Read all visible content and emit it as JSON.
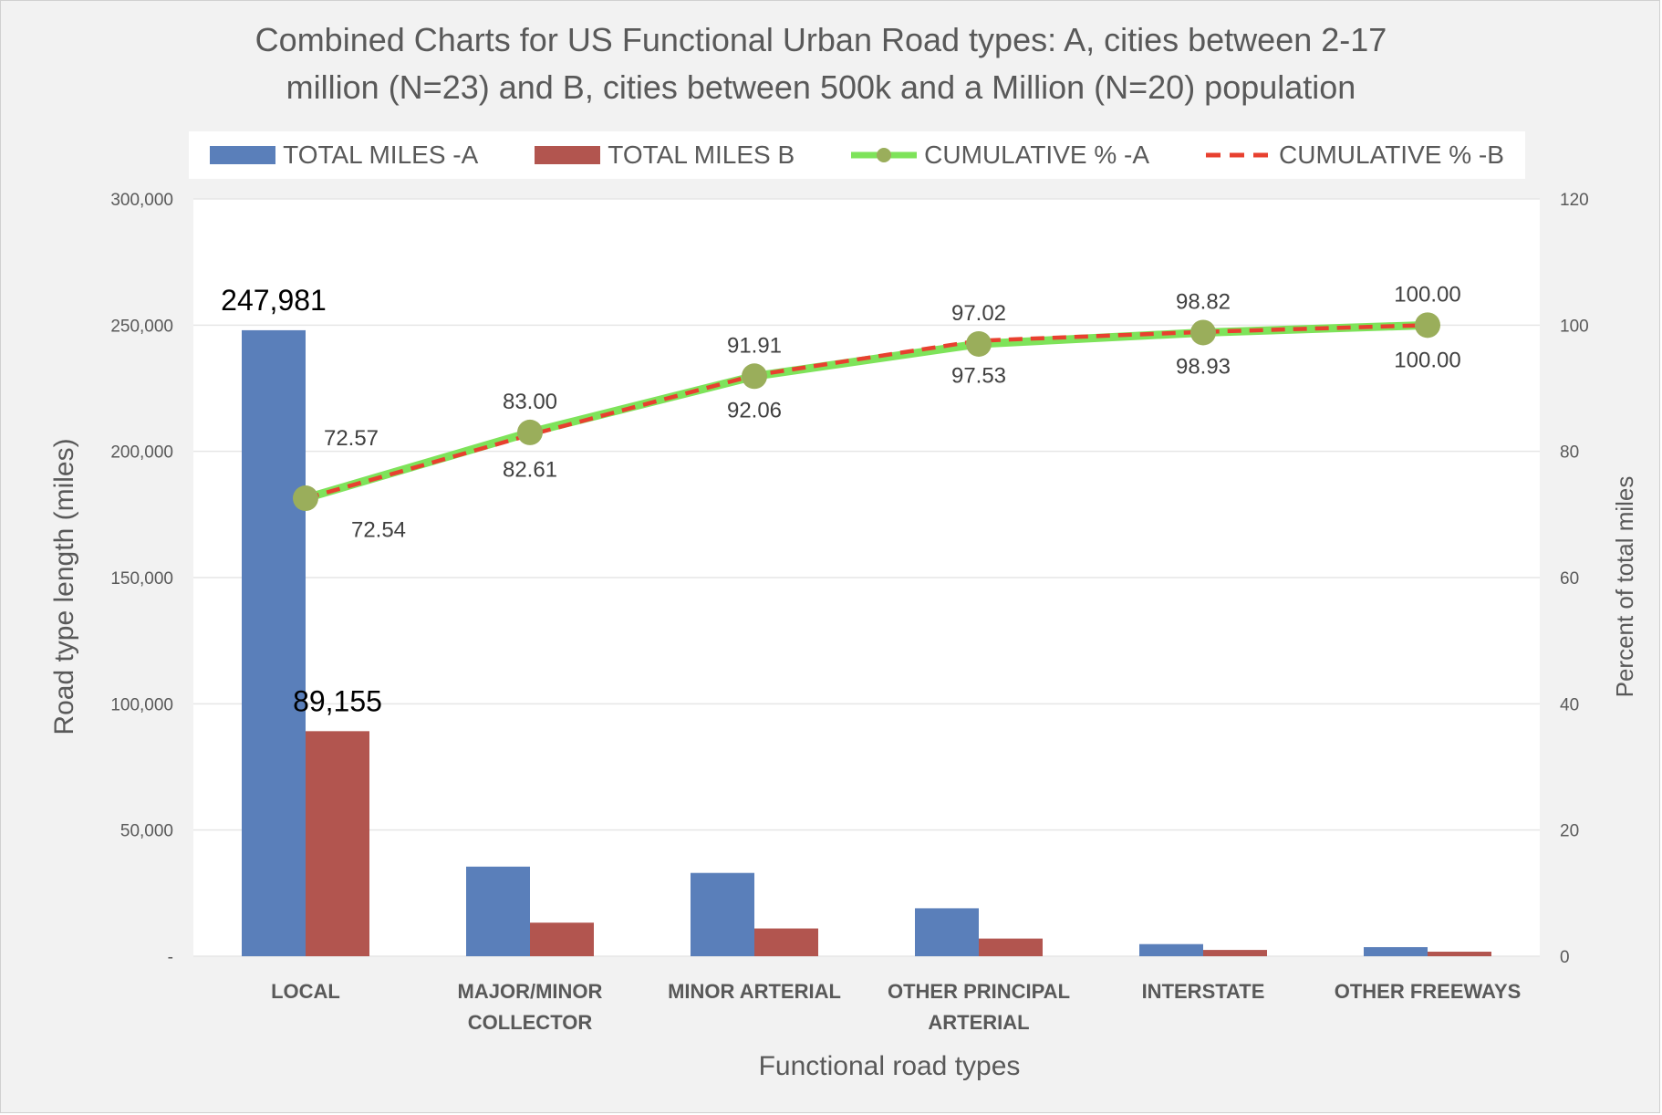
{
  "chart_data": {
    "type": "bar",
    "title_lines": [
      "Combined Charts for US Functional Urban Road types:  A, cities between 2-17",
      "million (N=23) and B, cities between 500k and a Million (N=20) population"
    ],
    "xlabel": "Functional road types",
    "ylabel": "Road type length  (miles)",
    "ylabel_right": "Percent of total miles",
    "ylim": [
      0,
      300000
    ],
    "ylim_right": [
      0,
      120
    ],
    "yticks": [
      "-",
      "50,000",
      "100,000",
      "150,000",
      "200,000",
      "250,000",
      "300,000"
    ],
    "yticks_right": [
      "0",
      "20",
      "40",
      "60",
      "80",
      "100",
      "120"
    ],
    "categories": [
      [
        "LOCAL"
      ],
      [
        "MAJOR/MINOR",
        "COLLECTOR"
      ],
      [
        "MINOR ARTERIAL"
      ],
      [
        "OTHER PRINCIPAL",
        "ARTERIAL"
      ],
      [
        "INTERSTATE"
      ],
      [
        "OTHER FREEWAYS"
      ]
    ],
    "series": [
      {
        "name": "TOTAL MILES -A",
        "kind": "bar",
        "color": "#5a7fba",
        "values": [
          247981,
          35500,
          33000,
          19000,
          4800,
          3600
        ],
        "labels": [
          "247,981",
          "",
          "",
          "",
          "",
          ""
        ]
      },
      {
        "name": "TOTAL MILES B",
        "kind": "bar",
        "color": "#b2554f",
        "values": [
          89155,
          13300,
          11000,
          7000,
          2500,
          1800
        ],
        "labels": [
          "89,155",
          "",
          "",
          "",
          "",
          ""
        ]
      },
      {
        "name": "CUMULATIVE % -A",
        "kind": "line",
        "axis": "right",
        "color": "#7ee35a",
        "marker_color": "#9aae5b",
        "values": [
          72.57,
          83.0,
          91.91,
          97.02,
          98.82,
          100.0
        ],
        "labels": [
          "72.57",
          "83.00",
          "91.91",
          "97.02",
          "98.82",
          "100.00"
        ]
      },
      {
        "name": "CUMULATIVE % -B",
        "kind": "dashed-line",
        "axis": "right",
        "color": "#e8402f",
        "values": [
          72.54,
          82.61,
          92.06,
          97.53,
          98.93,
          100.0
        ],
        "labels": [
          "72.54",
          "82.61",
          "92.06",
          "97.53",
          "98.93",
          "100.00"
        ]
      }
    ],
    "legend_position": "top",
    "grid": true
  }
}
